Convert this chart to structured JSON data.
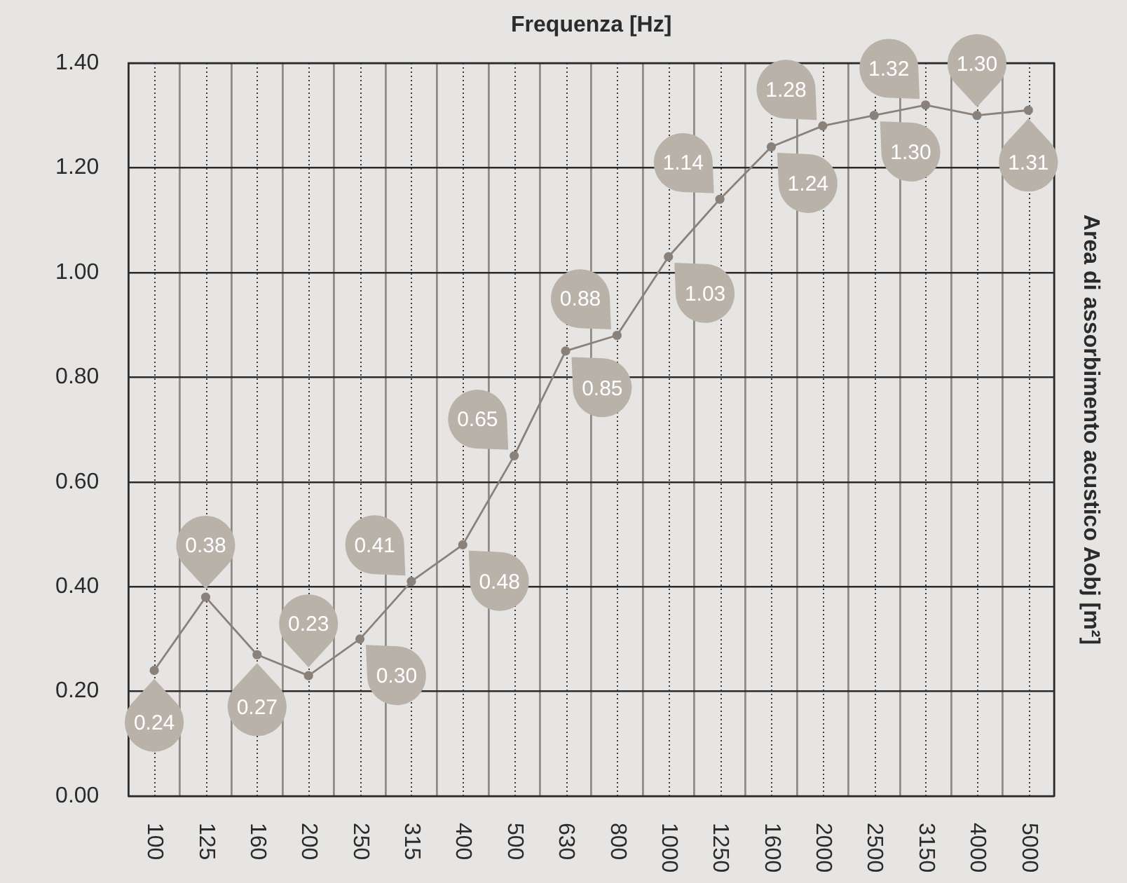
{
  "chart_data": {
    "type": "line",
    "xlabel": "Frequenza [Hz]",
    "ylabel": "Area di assorbimento acustico Aobj [m²]",
    "categories": [
      "100",
      "125",
      "160",
      "200",
      "250",
      "315",
      "400",
      "500",
      "630",
      "800",
      "1000",
      "1250",
      "1600",
      "2000",
      "2500",
      "3150",
      "4000",
      "5000"
    ],
    "values": [
      0.24,
      0.38,
      0.27,
      0.23,
      0.3,
      0.41,
      0.48,
      0.65,
      0.85,
      0.88,
      1.03,
      1.14,
      1.24,
      1.28,
      1.3,
      1.32,
      1.3,
      1.31
    ],
    "value_labels": [
      "0.24",
      "0.38",
      "0.27",
      "0.23",
      "0.30",
      "0.41",
      "0.48",
      "0.65",
      "0.85",
      "0.88",
      "1.03",
      "1.14",
      "1.24",
      "1.28",
      "1.30",
      "1.32",
      "1.30",
      "1.31"
    ],
    "color": "#8a817b",
    "ylim": [
      0,
      1.4
    ],
    "yticks": [
      {
        "value": 0,
        "label": "0.00"
      },
      {
        "value": 0.2,
        "label": "0.20"
      },
      {
        "value": 0.4,
        "label": "0.40"
      },
      {
        "value": 0.6,
        "label": "0.60"
      },
      {
        "value": 0.8,
        "label": "0.80"
      },
      {
        "value": 1,
        "label": "1.00"
      },
      {
        "value": 1.2,
        "label": "1.20"
      },
      {
        "value": 1.4,
        "label": "1.40"
      }
    ],
    "grid": true,
    "marker": "circle"
  }
}
